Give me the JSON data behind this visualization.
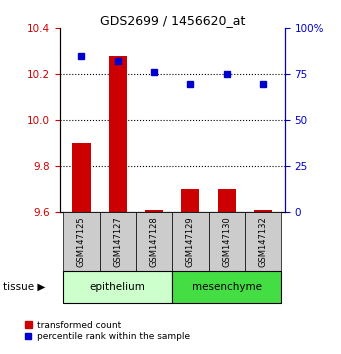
{
  "title": "GDS2699 / 1456620_at",
  "samples": [
    "GSM147125",
    "GSM147127",
    "GSM147128",
    "GSM147129",
    "GSM147130",
    "GSM147132"
  ],
  "transformed_counts": [
    9.9,
    10.28,
    9.61,
    9.7,
    9.7,
    9.61
  ],
  "percentile_ranks": [
    85,
    82,
    76,
    70,
    75,
    70
  ],
  "ylim_left": [
    9.6,
    10.4
  ],
  "ylim_right": [
    0,
    100
  ],
  "yticks_left": [
    9.6,
    9.8,
    10.0,
    10.2,
    10.4
  ],
  "yticks_right": [
    0,
    25,
    50,
    75,
    100
  ],
  "ytick_labels_right": [
    "0",
    "25",
    "50",
    "75",
    "100%"
  ],
  "bar_color": "#cc0000",
  "dot_color": "#0000cc",
  "bar_width": 0.5,
  "axis_color_left": "#cc0000",
  "axis_color_right": "#0000cc",
  "sample_box_color": "#cccccc",
  "epi_color": "#ccffcc",
  "mes_color": "#44dd44",
  "epi_label": "epithelium",
  "mes_label": "mesenchyme",
  "tissue_label": "tissue",
  "legend_bar_label": "transformed count",
  "legend_dot_label": "percentile rank within the sample"
}
